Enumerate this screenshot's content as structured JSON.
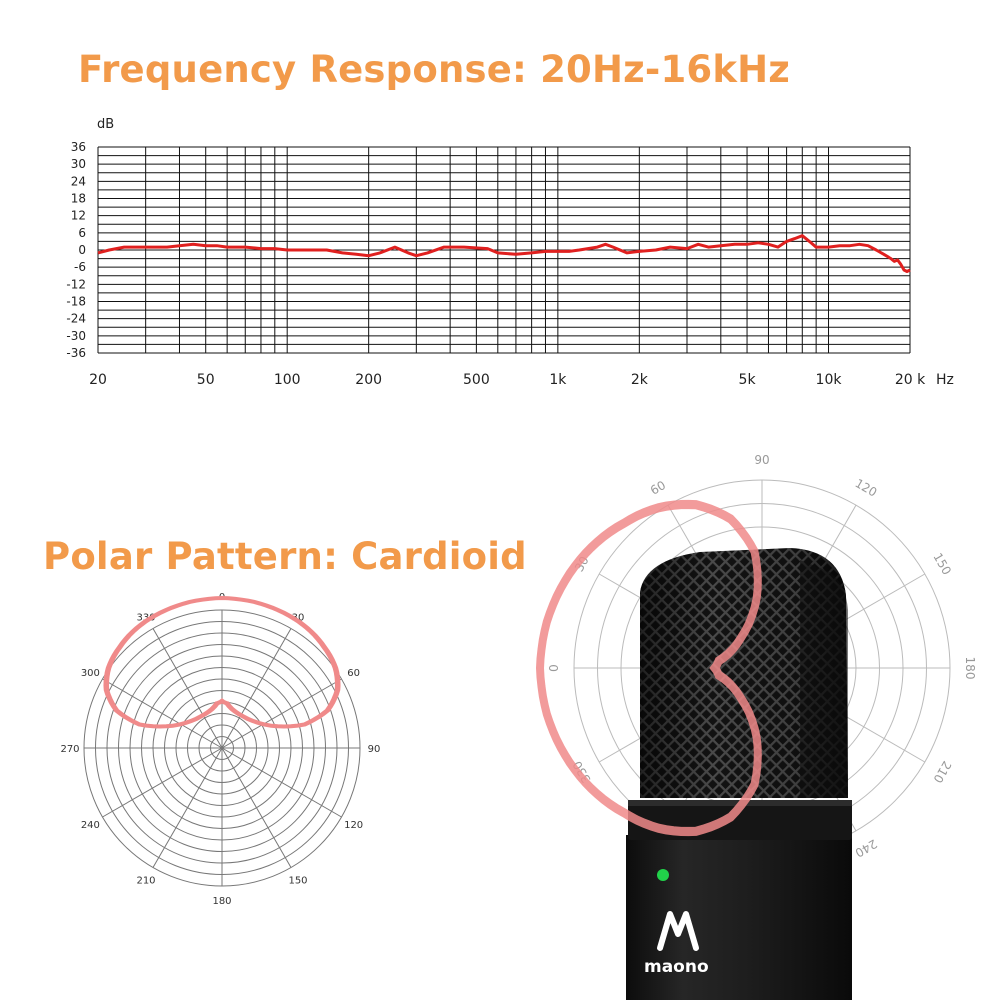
{
  "headline_frequency": "Frequency Response: 20Hz-16kHz",
  "headline_polar": "Polar Pattern: Cardioid",
  "brand_logo_text": "maono",
  "colors": {
    "headline": "#f29a4a",
    "response_curve": "#e0201f",
    "polar_curve": "#f08a8a",
    "grid": "#111111",
    "polar_grid_small": "#777777",
    "polar_grid_large": "#bbbbbb",
    "led": "#21d24a",
    "mic_body": "#1b1b1b"
  },
  "chart_data": [
    {
      "type": "line",
      "title": "Frequency Response: 20Hz-16kHz",
      "ylabel": "dB",
      "xunit": "Hz",
      "xscale": "log",
      "xlim": [
        20,
        20000
      ],
      "ylim": [
        -36,
        36
      ],
      "grid": true,
      "y_ticks": [
        36,
        30,
        24,
        18,
        12,
        6,
        0,
        -6,
        -12,
        -18,
        -24,
        -30,
        -36
      ],
      "x_ticks": [
        {
          "value": 20,
          "label": "20"
        },
        {
          "value": 50,
          "label": "50"
        },
        {
          "value": 100,
          "label": "100"
        },
        {
          "value": 200,
          "label": "200"
        },
        {
          "value": 500,
          "label": "500"
        },
        {
          "value": 1000,
          "label": "1k"
        },
        {
          "value": 2000,
          "label": "2k"
        },
        {
          "value": 5000,
          "label": "5k"
        },
        {
          "value": 10000,
          "label": "10k"
        },
        {
          "value": 20000,
          "label": "20 k"
        }
      ],
      "series": [
        {
          "points": [
            [
              20,
              -1
            ],
            [
              22,
              0
            ],
            [
              25,
              1
            ],
            [
              28,
              1
            ],
            [
              30,
              1
            ],
            [
              33,
              1
            ],
            [
              36,
              1
            ],
            [
              40,
              1.5
            ],
            [
              45,
              2
            ],
            [
              50,
              1.5
            ],
            [
              55,
              1.5
            ],
            [
              60,
              1
            ],
            [
              70,
              1
            ],
            [
              80,
              0.5
            ],
            [
              90,
              0.5
            ],
            [
              100,
              0
            ],
            [
              120,
              0
            ],
            [
              140,
              0
            ],
            [
              160,
              -1
            ],
            [
              180,
              -1.5
            ],
            [
              200,
              -2
            ],
            [
              220,
              -1
            ],
            [
              250,
              1
            ],
            [
              280,
              -1
            ],
            [
              300,
              -2
            ],
            [
              330,
              -1
            ],
            [
              380,
              1
            ],
            [
              450,
              1
            ],
            [
              550,
              0.5
            ],
            [
              600,
              -1
            ],
            [
              700,
              -1.5
            ],
            [
              800,
              -1
            ],
            [
              900,
              -0.5
            ],
            [
              1000,
              -0.5
            ],
            [
              1100,
              -0.5
            ],
            [
              1200,
              0
            ],
            [
              1400,
              1
            ],
            [
              1500,
              2
            ],
            [
              1600,
              1
            ],
            [
              1800,
              -1
            ],
            [
              2000,
              -0.5
            ],
            [
              2300,
              0
            ],
            [
              2600,
              1
            ],
            [
              3000,
              0.5
            ],
            [
              3300,
              2
            ],
            [
              3600,
              1
            ],
            [
              4000,
              1.5
            ],
            [
              4500,
              2
            ],
            [
              5000,
              2
            ],
            [
              5500,
              2.5
            ],
            [
              6000,
              2
            ],
            [
              6500,
              1
            ],
            [
              7000,
              3
            ],
            [
              7500,
              4
            ],
            [
              8000,
              5
            ],
            [
              8500,
              3
            ],
            [
              9000,
              1
            ],
            [
              10000,
              1
            ],
            [
              11000,
              1.5
            ],
            [
              12000,
              1.5
            ],
            [
              13000,
              2
            ],
            [
              14000,
              1.5
            ],
            [
              15000,
              0
            ],
            [
              16000,
              -1.5
            ],
            [
              17000,
              -3
            ],
            [
              17500,
              -4
            ],
            [
              18000,
              -3.5
            ],
            [
              18500,
              -5
            ],
            [
              19000,
              -7
            ],
            [
              19500,
              -7.5
            ],
            [
              20000,
              -7
            ]
          ]
        }
      ]
    },
    {
      "type": "polar",
      "title": "Polar Pattern: Cardioid",
      "angle_ticks": [
        "0",
        "30",
        "60",
        "90",
        "120",
        "150",
        "180",
        "210",
        "240",
        "270",
        "300",
        "330"
      ],
      "rings": 12,
      "series": [
        {
          "points": [
            [
              0,
              1
            ],
            [
              15,
              0.99
            ],
            [
              30,
              0.97
            ],
            [
              45,
              0.95
            ],
            [
              60,
              0.93
            ],
            [
              75,
              0.925
            ],
            [
              90,
              0.91
            ],
            [
              105,
              0.86
            ],
            [
              120,
              0.75
            ],
            [
              135,
              0.55
            ],
            [
              150,
              0.33
            ],
            [
              165,
              0.15
            ],
            [
              180,
              0.12
            ],
            [
              195,
              0.15
            ],
            [
              210,
              0.33
            ],
            [
              225,
              0.55
            ],
            [
              240,
              0.75
            ],
            [
              255,
              0.86
            ],
            [
              270,
              0.91
            ],
            [
              285,
              0.925
            ],
            [
              300,
              0.93
            ],
            [
              315,
              0.95
            ],
            [
              330,
              0.97
            ],
            [
              345,
              0.99
            ]
          ]
        }
      ]
    },
    {
      "type": "polar",
      "title": "",
      "angle_ticks": [
        "60",
        "90",
        "120",
        "150",
        "180",
        "210",
        "240",
        "330",
        "0",
        "30"
      ],
      "series": [
        {
          "points": [
            [
              0,
              1
            ],
            [
              15,
              0.99
            ],
            [
              30,
              0.97
            ],
            [
              45,
              0.95
            ],
            [
              60,
              0.93
            ],
            [
              75,
              0.925
            ],
            [
              90,
              0.91
            ],
            [
              105,
              0.86
            ],
            [
              120,
              0.75
            ],
            [
              135,
              0.55
            ],
            [
              150,
              0.33
            ],
            [
              165,
              0.15
            ],
            [
              180,
              0.12
            ],
            [
              195,
              0.15
            ],
            [
              210,
              0.33
            ],
            [
              225,
              0.55
            ],
            [
              240,
              0.75
            ],
            [
              255,
              0.86
            ],
            [
              270,
              0.91
            ],
            [
              285,
              0.925
            ],
            [
              300,
              0.93
            ],
            [
              315,
              0.95
            ],
            [
              330,
              0.97
            ],
            [
              345,
              0.99
            ]
          ]
        }
      ]
    }
  ]
}
